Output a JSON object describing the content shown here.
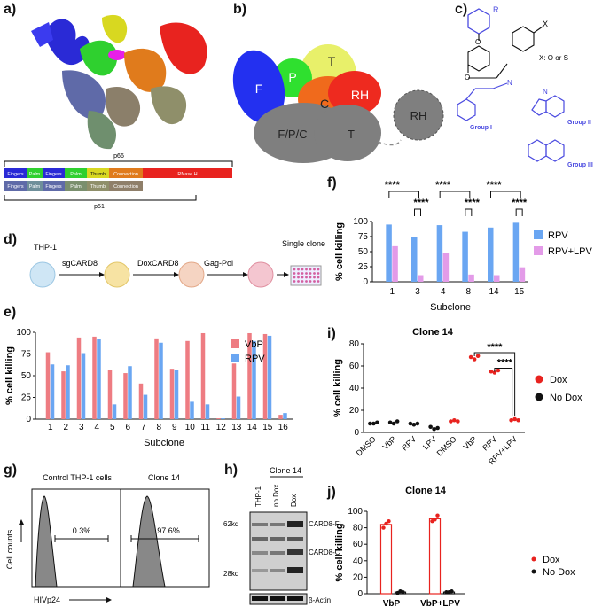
{
  "panel_labels": {
    "a": "a)",
    "b": "b)",
    "c": "c)",
    "d": "d)",
    "e": "e)",
    "f": "f)",
    "g": "g)",
    "h": "h)",
    "i": "i)",
    "j": "j)"
  },
  "panel_a": {
    "p66_label": "p66",
    "p51_label": "p51",
    "p66_domains": [
      {
        "label": "Fingers",
        "color": "#2a2ad6"
      },
      {
        "label": "Palm",
        "color": "#2fd02f"
      },
      {
        "label": "Fingers",
        "color": "#2a2ad6"
      },
      {
        "label": "Palm",
        "color": "#2fd02f"
      },
      {
        "label": "Thumb",
        "color": "#d8d820"
      },
      {
        "label": "Connection",
        "color": "#e07b1c"
      },
      {
        "label": "RNase H",
        "color": "#e8231f"
      }
    ],
    "p51_domains": [
      {
        "label": "Fingers",
        "color": "#5f6aa8"
      },
      {
        "label": "Palm",
        "color": "#6f8f9a"
      },
      {
        "label": "Fingers",
        "color": "#5f6aa8"
      },
      {
        "label": "Palm",
        "color": "#7a8f6e"
      },
      {
        "label": "Thumb",
        "color": "#8f8f6a"
      },
      {
        "label": "Connection",
        "color": "#8f7f6a"
      }
    ]
  },
  "panel_b": {
    "F": "F",
    "P": "P",
    "T": "T",
    "C": "C",
    "RH": "RH",
    "FPC": "F/P/C",
    "T2": "T",
    "RH2": "RH"
  },
  "panel_c": {
    "R": "R",
    "X": "X",
    "X_note": "X: O or S",
    "group1": "Group I",
    "group2": "Group II",
    "group3": "Group III",
    "N": "N",
    "O": "O"
  },
  "panel_d": {
    "steps": [
      "THP-1",
      "sgCARD8",
      "DoxCARD8",
      "Gag-Pol",
      "Single clone"
    ]
  },
  "panel_e": {
    "chart_data": {
      "type": "bar",
      "xlabel": "Subclone",
      "ylabel": "% cell killing",
      "ylim": [
        0,
        100
      ],
      "categories": [
        "1",
        "2",
        "3",
        "4",
        "5",
        "6",
        "7",
        "8",
        "9",
        "10",
        "11",
        "12",
        "13",
        "14",
        "15",
        "16"
      ],
      "series": [
        {
          "name": "VbP",
          "color": "#ee7c82",
          "values": [
            77,
            55,
            94,
            95,
            57,
            53,
            41,
            93,
            58,
            90,
            99,
            1,
            64,
            99,
            98,
            5
          ]
        },
        {
          "name": "RPV",
          "color": "#6aa6f2",
          "values": [
            63,
            62,
            76,
            92,
            17,
            61,
            28,
            88,
            57,
            20,
            17,
            1,
            26,
            90,
            96,
            7
          ]
        }
      ]
    }
  },
  "panel_f": {
    "chart_data": {
      "type": "bar",
      "xlabel": "Subclone",
      "ylabel": "% cell killing",
      "ylim": [
        0,
        100
      ],
      "categories": [
        "1",
        "3",
        "4",
        "8",
        "14",
        "15"
      ],
      "series": [
        {
          "name": "RPV",
          "color": "#6aa6f2",
          "values": [
            95,
            74,
            94,
            83,
            90,
            98
          ]
        },
        {
          "name": "RPV+LPV",
          "color": "#e39be8",
          "values": [
            59,
            11,
            48,
            12,
            11,
            24
          ]
        }
      ],
      "significance": "****"
    }
  },
  "panel_g": {
    "left_title": "Control THP-1 cells",
    "right_title": "Clone 14",
    "left_pct": "0.3%",
    "right_pct": "97.6%",
    "ylabel": "Cell counts",
    "xlabel": "HIVp24"
  },
  "panel_h": {
    "clone_label": "Clone 14",
    "lanes": [
      "THP-1",
      "no Dox",
      "Dox"
    ],
    "mw": [
      "62kd",
      "28kd"
    ],
    "bands": [
      "CARD8-FL",
      "CARD8-C",
      "β-Actin"
    ]
  },
  "panel_i": {
    "chart_data": {
      "type": "scatter",
      "title": "Clone 14",
      "ylabel": "% cell killing",
      "ylim": [
        0,
        80
      ],
      "categories": [
        "DMSO",
        "VbP",
        "RPV",
        "LPV",
        "DMSO",
        "VbP",
        "RPV",
        "RPV+LPV"
      ],
      "series": [
        {
          "name": "No Dox",
          "color": "#111111",
          "values": [
            [
              8,
              8,
              9
            ],
            [
              9,
              8,
              10
            ],
            [
              8,
              7,
              8
            ],
            [
              5,
              3,
              4
            ]
          ]
        },
        {
          "name": "Dox",
          "color": "#e8231f",
          "values": [
            [
              10,
              11,
              10
            ],
            [
              68,
              66,
              69
            ],
            [
              55,
              54,
              56
            ],
            [
              11,
              12,
              11
            ]
          ]
        }
      ],
      "significance": "****"
    }
  },
  "panel_j": {
    "chart_data": {
      "type": "bar",
      "title": "Clone 14",
      "ylabel": "% cell killing",
      "ylim": [
        0,
        100
      ],
      "categories": [
        "VbP",
        "VbP+LPV"
      ],
      "series": [
        {
          "name": "Dox",
          "color": "#e8231f",
          "values": [
            84,
            91
          ],
          "points": [
            [
              80,
              85,
              88
            ],
            [
              88,
              90,
              95
            ]
          ]
        },
        {
          "name": "No Dox",
          "color": "#111111",
          "values": [
            2,
            2
          ],
          "points": [
            [
              1,
              3,
              2
            ],
            [
              2,
              2,
              3
            ]
          ]
        }
      ]
    }
  }
}
